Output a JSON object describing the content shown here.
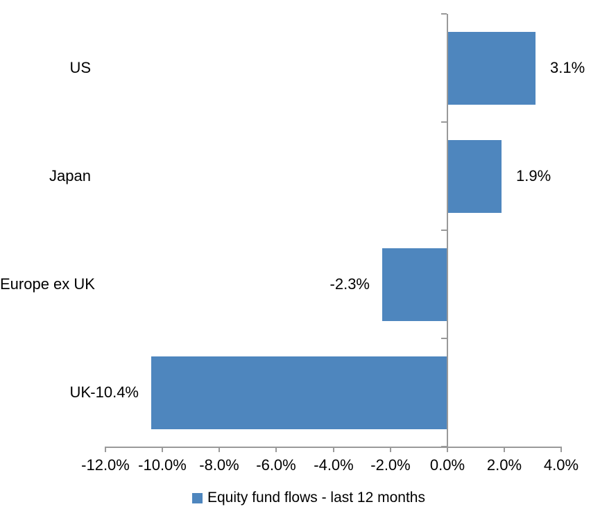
{
  "chart_data": {
    "type": "bar",
    "orientation": "horizontal",
    "title": "",
    "categories": [
      "US",
      "Japan",
      "Europe ex UK",
      "UK"
    ],
    "series": [
      {
        "name": "Equity fund flows - last 12 months",
        "values": [
          3.1,
          1.9,
          -2.3,
          -10.4
        ],
        "data_labels": [
          "3.1%",
          "1.9%",
          "-2.3%",
          "-10.4%"
        ],
        "color": "#4E86BE"
      }
    ],
    "xlabel": "",
    "ylabel": "",
    "xlim": [
      -12,
      4
    ],
    "x_tick_values": [
      -12,
      -10,
      -8,
      -6,
      -4,
      -2,
      0,
      2,
      4
    ],
    "x_tick_labels": [
      "-12.0%",
      "-10.0%",
      "-8.0%",
      "-6.0%",
      "-4.0%",
      "-2.0%",
      "0.0%",
      "2.0%",
      "4.0%"
    ],
    "grid": false,
    "legend_position": "bottom",
    "axis_color": "#999999",
    "text_color": "#000000",
    "background_color": "#ffffff"
  },
  "legend": {
    "label": "Equity fund flows - last 12 months",
    "marker_color": "#4E86BE"
  }
}
